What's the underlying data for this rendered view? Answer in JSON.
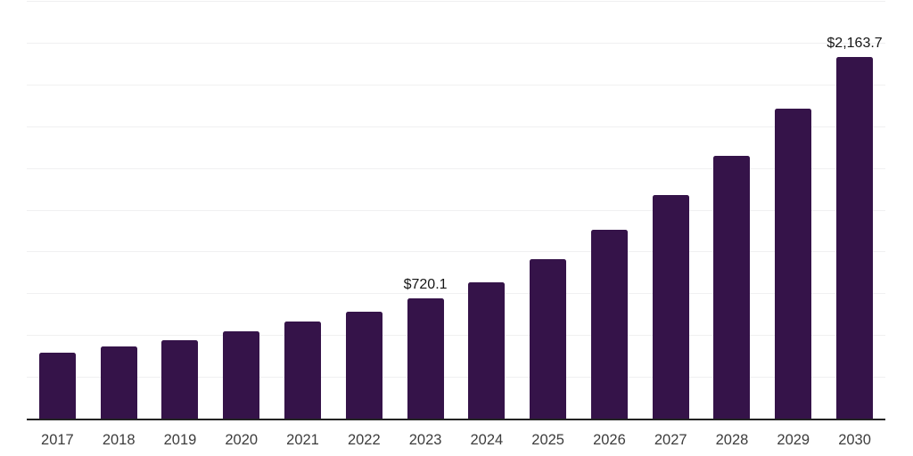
{
  "chart_data": {
    "type": "bar",
    "title": "",
    "xlabel": "",
    "ylabel": "",
    "categories": [
      "2017",
      "2018",
      "2019",
      "2020",
      "2021",
      "2022",
      "2023",
      "2024",
      "2025",
      "2026",
      "2027",
      "2028",
      "2029",
      "2030"
    ],
    "values": [
      394.9,
      430.2,
      468.7,
      522.6,
      580.1,
      639.5,
      720.1,
      815.6,
      951.7,
      1130.6,
      1336.1,
      1574.9,
      1855.4,
      2163.7
    ],
    "data_labels": {
      "2023": "$720.1",
      "2030": "$2,163.7"
    },
    "ylim": [
      0,
      2500
    ],
    "grid_step": 250,
    "grid": "horizontal-only",
    "legend": "none",
    "y_tick_labels_visible": false,
    "colors": {
      "bar": "#351349",
      "gridline": "#f0f0f1",
      "axis_line": "#232323",
      "tick_text": "#3d3d3d",
      "value_label_text": "#161616",
      "background": "#ffffff"
    }
  }
}
